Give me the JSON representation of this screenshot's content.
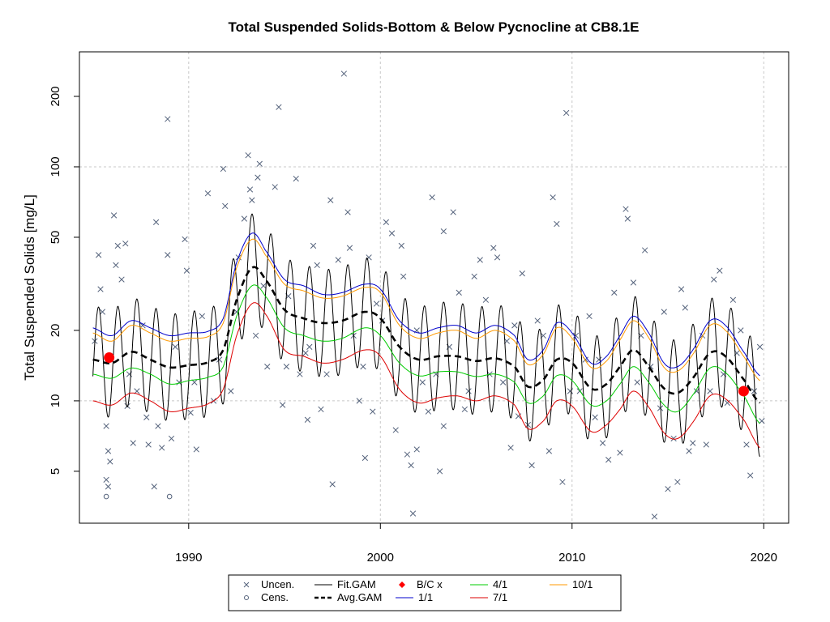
{
  "chart_data": {
    "type": "scatter",
    "title": "Total Suspended Solids-Bottom & Below Pycnocline at CB8.1E",
    "xlabel": "",
    "ylabel": "Total Suspended Solids [mg/L]",
    "y_scale": "log",
    "xlim": [
      1984.3,
      2021.3
    ],
    "ylim": [
      3.0,
      310
    ],
    "x_ticks": [
      1990,
      2000,
      2010,
      2020
    ],
    "y_ticks": [
      5,
      10,
      20,
      50,
      100,
      200
    ],
    "grid": true,
    "legend": {
      "position": "bottom-center",
      "entries": [
        "Uncen.",
        "Cens.",
        "Fit.GAM",
        "Avg.GAM",
        "B/C x",
        "1/1",
        "4/1",
        "7/1",
        "10/1"
      ]
    },
    "colors": {
      "uncensored": "#54627b",
      "censored": "#54627b",
      "fit_gam": "#000000",
      "avg_gam": "#000000",
      "bc_marker": "#ff0000",
      "d1_1": "#0000cc",
      "d4_1": "#00cc00",
      "d7_1": "#dd0000",
      "d10_1": "#ff9900",
      "grid": "#c8c8c8"
    },
    "uncensored": [
      [
        1985.1,
        18
      ],
      [
        1985.3,
        42
      ],
      [
        1985.4,
        30
      ],
      [
        1985.5,
        24
      ],
      [
        1985.7,
        7.8
      ],
      [
        1985.8,
        6.1
      ],
      [
        1985.9,
        5.5
      ],
      [
        1985.7,
        4.6
      ],
      [
        1985.8,
        4.3
      ],
      [
        1986.1,
        62
      ],
      [
        1986.2,
        38
      ],
      [
        1986.3,
        46
      ],
      [
        1986.7,
        47
      ],
      [
        1986.5,
        33
      ],
      [
        1986.9,
        13
      ],
      [
        1986.8,
        9.5
      ],
      [
        1987.1,
        6.6
      ],
      [
        1987.3,
        11
      ],
      [
        1987.6,
        21
      ],
      [
        1987.8,
        8.5
      ],
      [
        1987.9,
        6.5
      ],
      [
        1988.2,
        4.3
      ],
      [
        1988.3,
        58
      ],
      [
        1988.4,
        7.8
      ],
      [
        1988.6,
        6.3
      ],
      [
        1988.9,
        160
      ],
      [
        1988.9,
        42
      ],
      [
        1989.1,
        6.9
      ],
      [
        1989.3,
        17
      ],
      [
        1989.5,
        12
      ],
      [
        1989.8,
        49
      ],
      [
        1989.9,
        36
      ],
      [
        1990.1,
        8.9
      ],
      [
        1990.3,
        12
      ],
      [
        1990.4,
        6.2
      ],
      [
        1990.7,
        23
      ],
      [
        1991.0,
        77
      ],
      [
        1991.3,
        10
      ],
      [
        1991.6,
        15
      ],
      [
        1991.8,
        98
      ],
      [
        1991.9,
        68
      ],
      [
        1992.2,
        11
      ],
      [
        1992.5,
        24
      ],
      [
        1992.6,
        41
      ],
      [
        1992.9,
        60
      ],
      [
        1993.1,
        112
      ],
      [
        1993.2,
        80
      ],
      [
        1993.3,
        72
      ],
      [
        1993.5,
        19
      ],
      [
        1993.6,
        90
      ],
      [
        1993.7,
        103
      ],
      [
        1993.9,
        31
      ],
      [
        1994.1,
        14
      ],
      [
        1994.5,
        82
      ],
      [
        1994.7,
        180
      ],
      [
        1994.9,
        9.6
      ],
      [
        1995.1,
        14
      ],
      [
        1995.2,
        28
      ],
      [
        1995.6,
        89
      ],
      [
        1995.8,
        13
      ],
      [
        1996.1,
        16
      ],
      [
        1996.2,
        8.3
      ],
      [
        1996.5,
        46
      ],
      [
        1996.7,
        38
      ],
      [
        1996.9,
        9.2
      ],
      [
        1997.2,
        13
      ],
      [
        1997.4,
        72
      ],
      [
        1997.5,
        4.4
      ],
      [
        1997.8,
        40
      ],
      [
        1998.1,
        250
      ],
      [
        1998.3,
        64
      ],
      [
        1998.4,
        45
      ],
      [
        1998.6,
        19
      ],
      [
        1998.9,
        10
      ],
      [
        1999.1,
        14
      ],
      [
        1999.4,
        41
      ],
      [
        1999.6,
        9.0
      ],
      [
        1999.8,
        26
      ],
      [
        2000.1,
        22
      ],
      [
        2000.3,
        58
      ],
      [
        2000.6,
        52
      ],
      [
        2000.8,
        7.5
      ],
      [
        2001.1,
        46
      ],
      [
        2001.2,
        34
      ],
      [
        2001.4,
        5.9
      ],
      [
        2001.6,
        5.3
      ],
      [
        2001.7,
        3.3
      ],
      [
        2001.9,
        6.2
      ],
      [
        2002.2,
        12
      ],
      [
        2002.5,
        9.0
      ],
      [
        2002.7,
        74
      ],
      [
        2002.9,
        13
      ],
      [
        2003.1,
        5.0
      ],
      [
        2003.3,
        7.8
      ],
      [
        2003.6,
        17
      ],
      [
        2003.8,
        64
      ],
      [
        2004.1,
        29
      ],
      [
        2004.4,
        9.2
      ],
      [
        2004.6,
        11
      ],
      [
        2004.9,
        34
      ],
      [
        2005.2,
        40
      ],
      [
        2005.5,
        27
      ],
      [
        2005.7,
        13
      ],
      [
        2005.9,
        45
      ],
      [
        2006.1,
        41
      ],
      [
        2006.4,
        12
      ],
      [
        2006.6,
        18
      ],
      [
        2006.8,
        6.3
      ],
      [
        2007.0,
        21
      ],
      [
        2007.2,
        8.6
      ],
      [
        2007.4,
        35
      ],
      [
        2007.7,
        7.9
      ],
      [
        2007.9,
        5.3
      ],
      [
        2008.2,
        22
      ],
      [
        2008.5,
        19
      ],
      [
        2008.8,
        6.1
      ],
      [
        2009.0,
        74
      ],
      [
        2009.2,
        57
      ],
      [
        2009.5,
        4.5
      ],
      [
        2009.7,
        170
      ],
      [
        2009.9,
        11
      ],
      [
        2010.2,
        19
      ],
      [
        2010.4,
        11
      ],
      [
        2010.7,
        15
      ],
      [
        2010.9,
        23
      ],
      [
        2011.2,
        8.5
      ],
      [
        2011.4,
        15
      ],
      [
        2011.6,
        6.6
      ],
      [
        2011.9,
        5.6
      ],
      [
        2012.2,
        29
      ],
      [
        2012.5,
        6.0
      ],
      [
        2012.8,
        66
      ],
      [
        2012.9,
        60
      ],
      [
        2013.2,
        32
      ],
      [
        2013.4,
        12
      ],
      [
        2013.6,
        19
      ],
      [
        2013.8,
        44
      ],
      [
        2014.1,
        14
      ],
      [
        2014.3,
        3.2
      ],
      [
        2014.6,
        9.3
      ],
      [
        2014.8,
        24
      ],
      [
        2015.0,
        4.2
      ],
      [
        2015.3,
        6.9
      ],
      [
        2015.5,
        4.5
      ],
      [
        2015.7,
        30
      ],
      [
        2015.9,
        25
      ],
      [
        2016.1,
        6.1
      ],
      [
        2016.3,
        6.6
      ],
      [
        2016.5,
        11
      ],
      [
        2016.8,
        19
      ],
      [
        2017.0,
        6.5
      ],
      [
        2017.2,
        11
      ],
      [
        2017.4,
        33
      ],
      [
        2017.7,
        36
      ],
      [
        2017.9,
        13
      ],
      [
        2018.1,
        9.8
      ],
      [
        2018.4,
        27
      ],
      [
        2018.6,
        16
      ],
      [
        2018.8,
        20
      ],
      [
        2019.1,
        6.5
      ],
      [
        2019.3,
        4.8
      ],
      [
        2019.5,
        11
      ],
      [
        2019.8,
        17
      ],
      [
        2019.9,
        8.2
      ],
      [
        2003.3,
        53
      ],
      [
        2001.9,
        20
      ],
      [
        1996.3,
        17
      ],
      [
        1999.2,
        5.7
      ]
    ],
    "censored": [
      [
        1985.7,
        3.9
      ],
      [
        1989.0,
        3.9
      ]
    ],
    "bc_points": [
      [
        1985.85,
        15.3
      ],
      [
        2018.95,
        11.0
      ]
    ],
    "curve_knots": {
      "x": [
        1985,
        1986,
        1987,
        1988,
        1989,
        1990,
        1991,
        1991.8,
        1992.5,
        1993.3,
        1994,
        1995,
        1996,
        1997,
        1998,
        1999.2,
        2000,
        2001,
        2002,
        2003,
        2004,
        2005,
        2006,
        2007,
        2007.7,
        2008.5,
        2009.2,
        2010,
        2011,
        2011.8,
        2012.5,
        2013.2,
        2014,
        2014.8,
        2015.5,
        2016.3,
        2017.2,
        2018,
        2019,
        2019.8
      ],
      "avg_gam": [
        15.0,
        14.5,
        16.2,
        15.0,
        13.9,
        14.2,
        14.6,
        16.5,
        27.0,
        37.0,
        33.0,
        24.5,
        22.5,
        21.5,
        22.0,
        24.0,
        22.5,
        17.0,
        15.0,
        15.5,
        15.5,
        14.8,
        15.2,
        14.0,
        11.5,
        12.3,
        15.0,
        14.5,
        11.3,
        11.8,
        14.0,
        16.5,
        14.0,
        11.3,
        10.8,
        12.5,
        16.0,
        15.5,
        12.2,
        9.8
      ],
      "d1_1": [
        20.5,
        19.0,
        22.0,
        20.5,
        19.0,
        19.5,
        19.8,
        22.5,
        39.0,
        52.0,
        44.0,
        33.0,
        31.0,
        28.5,
        29.0,
        31.5,
        30.0,
        22.0,
        19.5,
        20.5,
        21.0,
        19.5,
        21.0,
        19.0,
        15.0,
        16.5,
        21.5,
        19.5,
        14.5,
        15.5,
        19.0,
        23.0,
        19.5,
        14.5,
        14.0,
        16.5,
        22.0,
        21.0,
        16.0,
        12.8
      ],
      "d4_1": [
        13.0,
        12.5,
        13.8,
        13.0,
        11.8,
        12.2,
        12.6,
        14.0,
        23.0,
        31.0,
        28.0,
        20.5,
        19.0,
        18.0,
        18.5,
        20.5,
        19.0,
        14.5,
        12.8,
        13.3,
        13.3,
        12.7,
        13.0,
        12.0,
        9.8,
        10.5,
        12.8,
        12.2,
        9.6,
        10.0,
        11.8,
        14.0,
        12.0,
        9.6,
        9.0,
        10.6,
        13.8,
        13.2,
        10.4,
        8.0
      ],
      "d7_1": [
        10.0,
        9.6,
        10.8,
        10.0,
        9.0,
        9.3,
        9.7,
        11.2,
        19.0,
        26.0,
        23.5,
        16.5,
        15.5,
        14.5,
        15.0,
        16.5,
        15.5,
        11.2,
        9.8,
        10.3,
        10.5,
        10.0,
        10.5,
        9.6,
        7.6,
        8.2,
        10.0,
        9.5,
        7.4,
        7.9,
        9.2,
        11.0,
        9.4,
        7.3,
        6.9,
        8.1,
        10.5,
        10.2,
        8.2,
        6.3
      ],
      "d10_1": [
        19.5,
        18.0,
        21.0,
        19.5,
        18.0,
        18.5,
        18.8,
        21.5,
        37.0,
        49.0,
        42.0,
        31.5,
        29.5,
        27.5,
        28.0,
        30.5,
        29.0,
        21.0,
        18.5,
        19.5,
        20.0,
        18.5,
        20.0,
        18.0,
        14.3,
        15.8,
        20.5,
        18.5,
        13.9,
        14.8,
        18.2,
        22.0,
        18.6,
        13.9,
        13.4,
        15.8,
        21.0,
        20.0,
        15.3,
        12.2
      ]
    },
    "fit_gam": {
      "x_start": 1985.0,
      "x_end": 2019.8,
      "seasonal_amplitude_log10": 0.23
    }
  }
}
